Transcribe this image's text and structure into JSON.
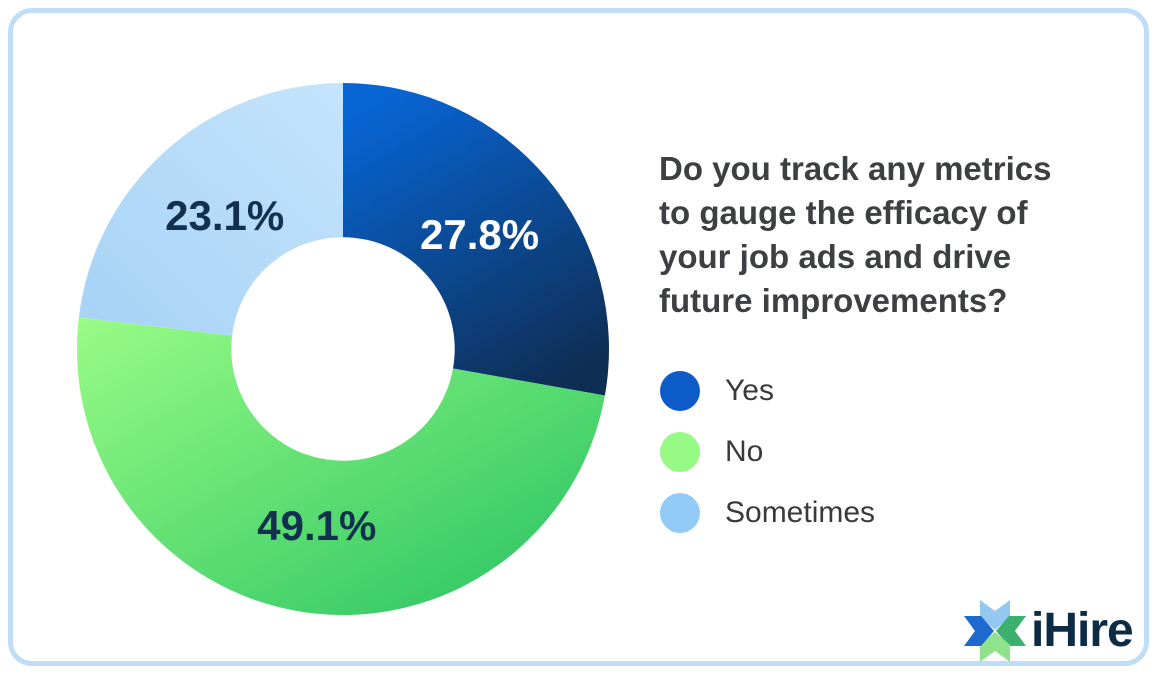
{
  "card": {
    "border_color": "#bfddf6",
    "background_color": "#ffffff"
  },
  "question": {
    "text": "Do you track any metrics\nto gauge the efficacy of\nyour job ads and drive\nfuture improvements?"
  },
  "chart_data": {
    "type": "pie",
    "subtype": "donut",
    "title": "Do you track any metrics to gauge the efficacy of your job ads and drive future improvements?",
    "start_angle_deg": 0,
    "direction": "clockwise",
    "inner_radius_ratio": 0.42,
    "legend_position": "right",
    "segments": [
      {
        "label": "Yes",
        "value": 27.8,
        "display": "27.8%",
        "color_start": "#0765d4",
        "color_end": "#0f2e54",
        "label_color": "#ffffff"
      },
      {
        "label": "No",
        "value": 49.1,
        "display": "49.1%",
        "color_start": "#99fc85",
        "color_end": "#25c161",
        "label_color": "#13314f"
      },
      {
        "label": "Sometimes",
        "value": 23.1,
        "display": "23.1%",
        "color_start": "#c5e4fc",
        "color_end": "#a6d2f5",
        "label_color": "#13314f"
      }
    ]
  },
  "legend": {
    "items": [
      {
        "label": "Yes",
        "color": "#0d5bc8"
      },
      {
        "label": "No",
        "color": "#97fa84"
      },
      {
        "label": "Sometimes",
        "color": "#93cbf8"
      }
    ]
  },
  "logo": {
    "text": "iHire",
    "text_color": "#0d2b45",
    "icon_colors": {
      "top": "#93c9f0",
      "right": "#3cb06e",
      "bottom": "#90e38c",
      "left": "#1d69cf"
    }
  }
}
